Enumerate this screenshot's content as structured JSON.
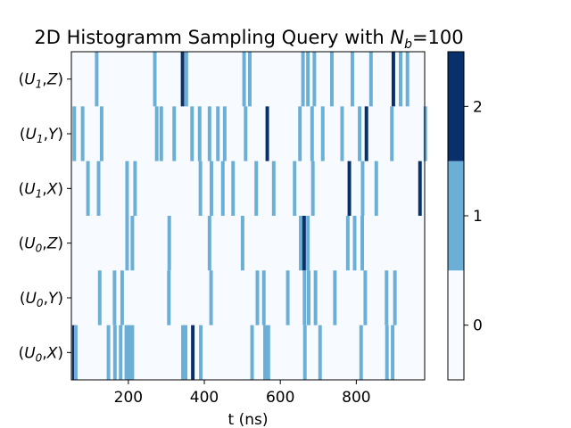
{
  "chart_data": {
    "type": "heatmap",
    "title": "2D Histogramm Sampling Query with N_b=100",
    "title_parts": {
      "prefix": "2D Histogramm Sampling Query with ",
      "var": "N",
      "sub": "b",
      "suffix": "=100"
    },
    "xlabel": "t (ns)",
    "ylabel": "",
    "xlim": [
      50,
      980
    ],
    "x_ticks": [
      200,
      400,
      600,
      800
    ],
    "x_tick_labels": [
      "200",
      "400",
      "600",
      "800"
    ],
    "bin_width": 9.3,
    "rows": [
      {
        "label": "(U_1,Z)",
        "base": "U",
        "sub": "1",
        "gate": "Z"
      },
      {
        "label": "(U_1,Y)",
        "base": "U",
        "sub": "1",
        "gate": "Y"
      },
      {
        "label": "(U_1,X)",
        "base": "U",
        "sub": "1",
        "gate": "X"
      },
      {
        "label": "(U_0,Z)",
        "base": "U",
        "sub": "0",
        "gate": "Z"
      },
      {
        "label": "(U_0,Y)",
        "base": "U",
        "sub": "0",
        "gate": "Y"
      },
      {
        "label": "(U_0,X)",
        "base": "U",
        "sub": "0",
        "gate": "X"
      }
    ],
    "counts": [
      [
        [
          112,
          1
        ],
        [
          265,
          1
        ],
        [
          338,
          2
        ],
        [
          348,
          1
        ],
        [
          500,
          1
        ],
        [
          515,
          1
        ],
        [
          655,
          1
        ],
        [
          668,
          1
        ],
        [
          685,
          1
        ],
        [
          731,
          1
        ],
        [
          785,
          1
        ],
        [
          834,
          1
        ],
        [
          893,
          2
        ],
        [
          912,
          1
        ],
        [
          930,
          1
        ]
      ],
      [
        [
          53,
          1
        ],
        [
          75,
          1
        ],
        [
          125,
          1
        ],
        [
          270,
          1
        ],
        [
          282,
          1
        ],
        [
          316,
          1
        ],
        [
          363,
          1
        ],
        [
          383,
          1
        ],
        [
          409,
          1
        ],
        [
          431,
          1
        ],
        [
          449,
          1
        ],
        [
          504,
          1
        ],
        [
          561,
          2
        ],
        [
          647,
          1
        ],
        [
          679,
          1
        ],
        [
          707,
          1
        ],
        [
          758,
          1
        ],
        [
          804,
          1
        ],
        [
          822,
          2
        ],
        [
          889,
          1
        ],
        [
          977,
          1
        ]
      ],
      [
        [
          89,
          1
        ],
        [
          117,
          1
        ],
        [
          192,
          1
        ],
        [
          213,
          1
        ],
        [
          385,
          1
        ],
        [
          414,
          1
        ],
        [
          444,
          1
        ],
        [
          471,
          1
        ],
        [
          532,
          1
        ],
        [
          578,
          1
        ],
        [
          633,
          1
        ],
        [
          681,
          1
        ],
        [
          777,
          2
        ],
        [
          812,
          1
        ],
        [
          848,
          1
        ],
        [
          963,
          2
        ]
      ],
      [
        [
          192,
          1
        ],
        [
          206,
          1
        ],
        [
          303,
          1
        ],
        [
          409,
          1
        ],
        [
          496,
          1
        ],
        [
          649,
          1
        ],
        [
          658,
          2
        ],
        [
          668,
          1
        ],
        [
          773,
          1
        ],
        [
          791,
          1
        ],
        [
          811,
          1
        ]
      ],
      [
        [
          120,
          1
        ],
        [
          159,
          1
        ],
        [
          179,
          1
        ],
        [
          302,
          1
        ],
        [
          413,
          1
        ],
        [
          535,
          1
        ],
        [
          552,
          1
        ],
        [
          615,
          1
        ],
        [
          659,
          1
        ],
        [
          670,
          1
        ],
        [
          688,
          1
        ],
        [
          739,
          1
        ],
        [
          819,
          1
        ],
        [
          875,
          1
        ],
        [
          897,
          1
        ]
      ],
      [
        [
          52,
          2
        ],
        [
          57,
          1
        ],
        [
          143,
          1
        ],
        [
          160,
          1
        ],
        [
          175,
          1
        ],
        [
          190,
          1
        ],
        [
          198,
          1
        ],
        [
          206,
          1
        ],
        [
          339,
          1
        ],
        [
          346,
          1
        ],
        [
          365,
          2
        ],
        [
          386,
          1
        ],
        [
          521,
          1
        ],
        [
          555,
          1
        ],
        [
          564,
          1
        ],
        [
          660,
          1
        ],
        [
          700,
          1
        ],
        [
          808,
          1
        ],
        [
          876,
          1
        ],
        [
          891,
          1
        ]
      ]
    ],
    "colorbar": {
      "ticks": [
        0,
        1,
        2
      ],
      "tick_labels": [
        "0",
        "1",
        "2"
      ],
      "range": [
        -0.5,
        2.5
      ],
      "colors": [
        "#f7fbff",
        "#6baed6",
        "#08306b"
      ]
    },
    "grid": false,
    "legend": "none"
  }
}
